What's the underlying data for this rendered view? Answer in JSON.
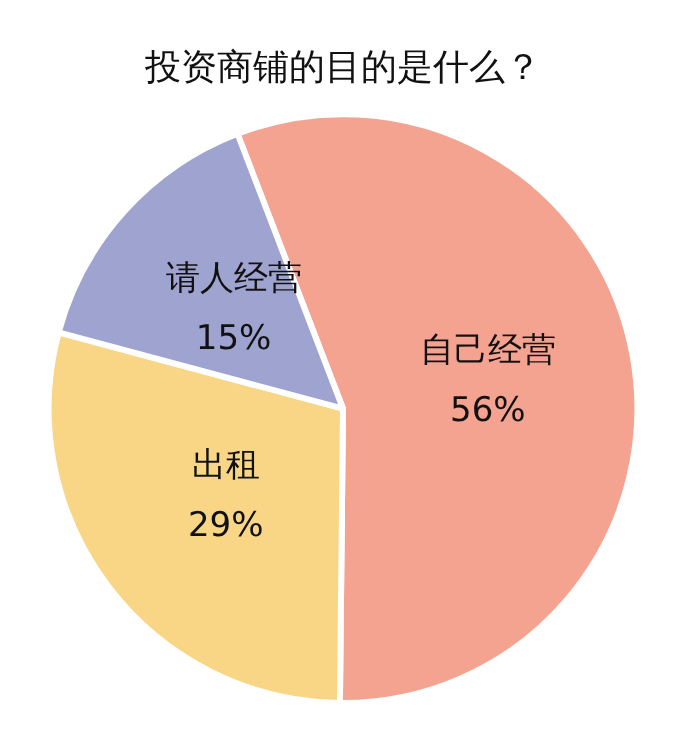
{
  "chart_data": {
    "type": "pie",
    "title": "投资商铺的目的是什么？",
    "categories": [
      "自己经营",
      "出租",
      "请人经营"
    ],
    "values": [
      56,
      29,
      15
    ],
    "colors": [
      "#f4a390",
      "#f9d686",
      "#9ea3cf"
    ],
    "value_labels": [
      "56%",
      "29%",
      "15%"
    ],
    "legend": false
  }
}
